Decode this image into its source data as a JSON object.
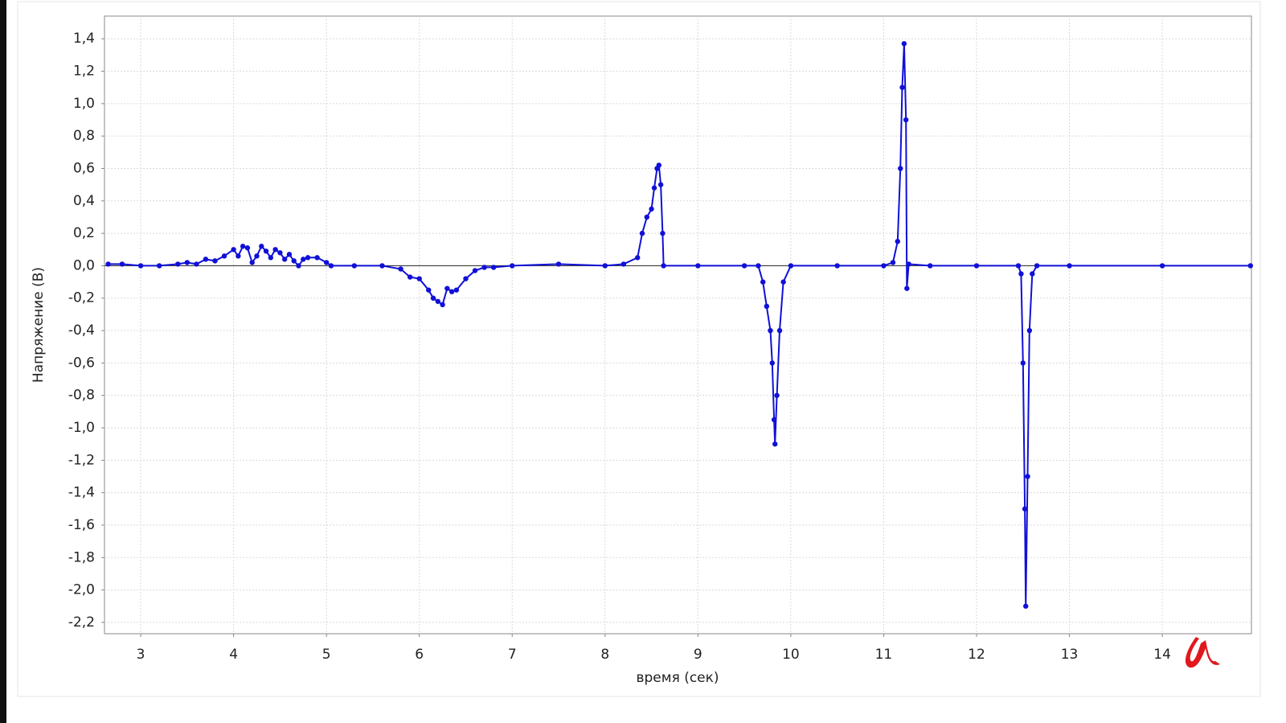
{
  "chart_data": {
    "type": "line",
    "xlabel": "время (сек)",
    "ylabel": "Напряжение (В)",
    "xlim": [
      2.61,
      14.96
    ],
    "ylim": [
      -2.27,
      1.54
    ],
    "xticks": [
      3,
      4,
      5,
      6,
      7,
      8,
      9,
      10,
      11,
      12,
      13,
      14
    ],
    "yticks": [
      {
        "value": 1.4,
        "label": "1,4"
      },
      {
        "value": 1.2,
        "label": "1,2"
      },
      {
        "value": 1.0,
        "label": "1,0"
      },
      {
        "value": 0.8,
        "label": "0,8"
      },
      {
        "value": 0.6,
        "label": "0,6"
      },
      {
        "value": 0.4,
        "label": "0,4"
      },
      {
        "value": 0.2,
        "label": "0,2"
      },
      {
        "value": 0,
        "label": "0,0"
      },
      {
        "value": -0.2,
        "label": "-0,2"
      },
      {
        "value": -0.4,
        "label": "-0,4"
      },
      {
        "value": -0.6,
        "label": "-0,6"
      },
      {
        "value": -0.8,
        "label": "-0,8"
      },
      {
        "value": -1.0,
        "label": "-1,0"
      },
      {
        "value": -1.2,
        "label": "-1,2"
      },
      {
        "value": -1.4,
        "label": "-1,4"
      },
      {
        "value": -1.6,
        "label": "-1,6"
      },
      {
        "value": -1.8,
        "label": "-1,8"
      },
      {
        "value": -2.0,
        "label": "-2,0"
      },
      {
        "value": -2.2,
        "label": "-2,2"
      }
    ],
    "grid": true,
    "x": [
      2.65,
      2.8,
      3.0,
      3.2,
      3.4,
      3.5,
      3.6,
      3.7,
      3.8,
      3.9,
      4.0,
      4.05,
      4.1,
      4.15,
      4.2,
      4.25,
      4.3,
      4.35,
      4.4,
      4.45,
      4.5,
      4.55,
      4.6,
      4.65,
      4.7,
      4.75,
      4.8,
      4.9,
      5.0,
      5.05,
      5.3,
      5.6,
      5.8,
      5.9,
      6.0,
      6.1,
      6.15,
      6.2,
      6.25,
      6.3,
      6.35,
      6.4,
      6.5,
      6.6,
      6.7,
      6.8,
      7.0,
      7.5,
      8.0,
      8.2,
      8.35,
      8.4,
      8.45,
      8.5,
      8.53,
      8.56,
      8.58,
      8.6,
      8.62,
      8.63,
      9.0,
      9.5,
      9.65,
      9.7,
      9.74,
      9.78,
      9.8,
      9.82,
      9.83,
      9.85,
      9.88,
      9.92,
      10.0,
      10.5,
      11.0,
      11.1,
      11.15,
      11.18,
      11.2,
      11.22,
      11.24,
      11.25,
      11.27,
      11.5,
      12.0,
      12.45,
      12.48,
      12.5,
      12.52,
      12.53,
      12.55,
      12.57,
      12.6,
      12.65,
      13.0,
      14.0,
      14.95
    ],
    "series": [
      {
        "color": "#1010d8",
        "values": [
          0.01,
          0.01,
          0.0,
          0.0,
          0.01,
          0.02,
          0.01,
          0.04,
          0.03,
          0.06,
          0.1,
          0.06,
          0.12,
          0.11,
          0.02,
          0.06,
          0.12,
          0.09,
          0.05,
          0.1,
          0.08,
          0.04,
          0.07,
          0.03,
          0.0,
          0.04,
          0.05,
          0.05,
          0.02,
          0.0,
          0.0,
          0.0,
          -0.02,
          -0.07,
          -0.08,
          -0.15,
          -0.2,
          -0.22,
          -0.24,
          -0.14,
          -0.16,
          -0.15,
          -0.08,
          -0.03,
          -0.01,
          -0.01,
          0.0,
          0.01,
          0.0,
          0.01,
          0.05,
          0.2,
          0.3,
          0.35,
          0.48,
          0.6,
          0.62,
          0.5,
          0.2,
          0.0,
          0.0,
          0.0,
          0.0,
          -0.1,
          -0.25,
          -0.4,
          -0.6,
          -0.95,
          -1.1,
          -0.8,
          -0.4,
          -0.1,
          0.0,
          0.0,
          0.0,
          0.02,
          0.15,
          0.6,
          1.1,
          1.37,
          0.9,
          -0.14,
          0.01,
          0.0,
          0.0,
          0.0,
          -0.05,
          -0.6,
          -1.5,
          -2.1,
          -1.3,
          -0.4,
          -0.05,
          0.0,
          0.0,
          0.0,
          0.0
        ]
      }
    ]
  }
}
